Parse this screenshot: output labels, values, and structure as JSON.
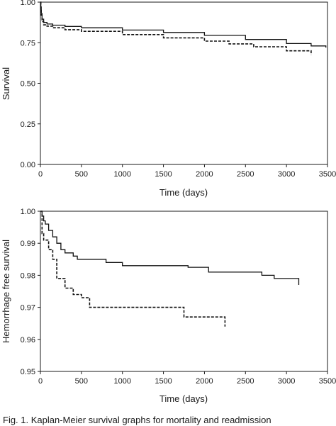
{
  "chart_data": [
    {
      "type": "line",
      "ylabel": "Survival",
      "xlabel": "Time (days)",
      "xlim": [
        0,
        3500
      ],
      "ylim": [
        0.0,
        1.0
      ],
      "xticks": [
        "0",
        "500",
        "1000",
        "1500",
        "2000",
        "2500",
        "3000",
        "3500"
      ],
      "yticks": [
        "0.00",
        "0.25",
        "0.50",
        "0.75",
        "1.00"
      ],
      "series": [
        {
          "style": "solid",
          "x": [
            0,
            5,
            10,
            20,
            40,
            80,
            150,
            300,
            500,
            1000,
            1500,
            2000,
            2500,
            3000,
            3300,
            3480
          ],
          "y": [
            1.0,
            0.97,
            0.93,
            0.895,
            0.875,
            0.865,
            0.858,
            0.85,
            0.842,
            0.828,
            0.813,
            0.795,
            0.77,
            0.745,
            0.73,
            0.72
          ]
        },
        {
          "style": "dashed",
          "x": [
            0,
            5,
            10,
            20,
            40,
            80,
            150,
            300,
            500,
            1000,
            1500,
            2000,
            2300,
            2600,
            3000,
            3300
          ],
          "y": [
            1.0,
            0.96,
            0.92,
            0.88,
            0.86,
            0.852,
            0.842,
            0.83,
            0.82,
            0.8,
            0.78,
            0.76,
            0.743,
            0.725,
            0.7,
            0.675
          ]
        }
      ]
    },
    {
      "type": "line",
      "ylabel": "Hemorrhage free survival",
      "xlabel": "Time (days)",
      "xlim": [
        0,
        3500
      ],
      "ylim": [
        0.95,
        1.0
      ],
      "xticks": [
        "0",
        "500",
        "1000",
        "1500",
        "2000",
        "2500",
        "3000",
        "3500"
      ],
      "yticks": [
        "0.95",
        "0.96",
        "0.97",
        "0.98",
        "0.99",
        "1.00"
      ],
      "series": [
        {
          "style": "solid",
          "x": [
            0,
            20,
            40,
            60,
            100,
            150,
            200,
            250,
            300,
            400,
            450,
            600,
            800,
            1000,
            1200,
            1500,
            1800,
            2050,
            2500,
            2700,
            2850,
            3000,
            3150
          ],
          "y": [
            1.0,
            0.9985,
            0.997,
            0.996,
            0.994,
            0.992,
            0.99,
            0.988,
            0.987,
            0.986,
            0.985,
            0.985,
            0.984,
            0.983,
            0.983,
            0.983,
            0.9825,
            0.981,
            0.981,
            0.98,
            0.979,
            0.979,
            0.977
          ]
        },
        {
          "style": "dashed",
          "x": [
            0,
            20,
            40,
            100,
            150,
            200,
            300,
            400,
            500,
            600,
            1000,
            1500,
            1750,
            2000,
            2250
          ],
          "y": [
            1.0,
            0.993,
            0.991,
            0.988,
            0.985,
            0.979,
            0.976,
            0.974,
            0.973,
            0.97,
            0.97,
            0.97,
            0.967,
            0.967,
            0.964
          ]
        }
      ]
    }
  ],
  "caption": "Fig. 1. Kaplan-Meier survival graphs for mortality and readmission"
}
